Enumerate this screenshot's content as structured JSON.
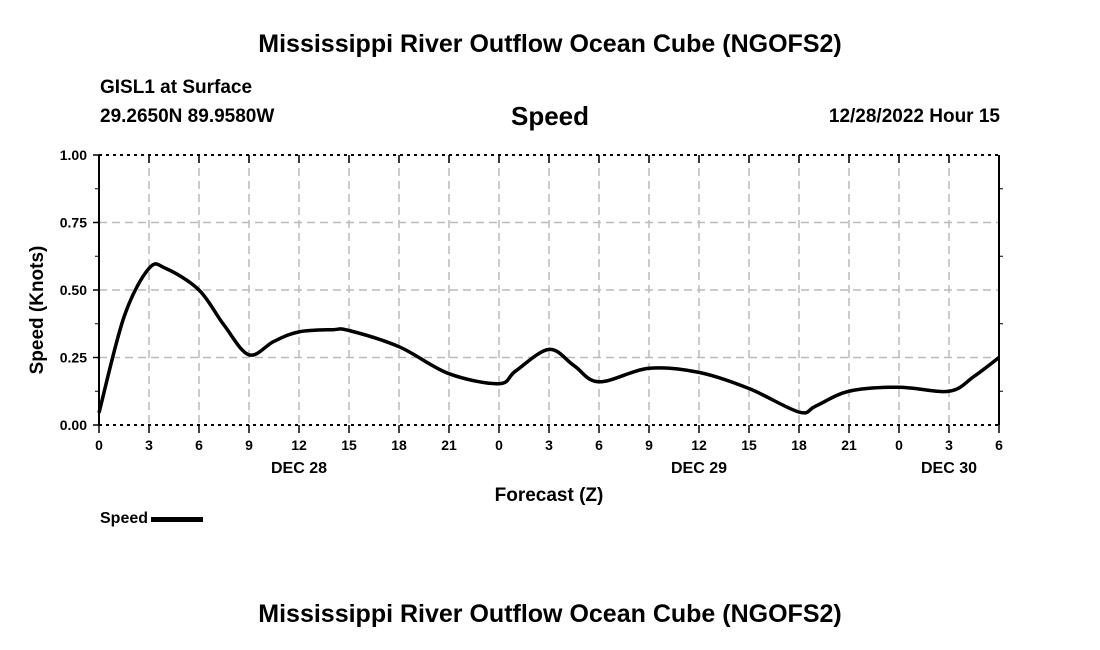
{
  "header": {
    "title": "Mississippi River Outflow Ocean Cube (NGOFS2)",
    "station": "GISL1 at Surface",
    "coords": "29.2650N  89.9580W",
    "datetime": "12/28/2022 Hour 15",
    "footer_title": "Mississippi River Outflow Ocean Cube (NGOFS2)"
  },
  "chart_data": {
    "type": "line",
    "title": "Speed",
    "xlabel": "Forecast (Z)",
    "ylabel": "Speed (Knots)",
    "ylim": [
      0,
      1
    ],
    "xlim": [
      0,
      54
    ],
    "grid": true,
    "yticks": [
      "0.00",
      "0.25",
      "0.50",
      "0.75",
      "1.00"
    ],
    "xticks": [
      "0",
      "3",
      "6",
      "9",
      "12",
      "15",
      "18",
      "21",
      "0",
      "3",
      "6",
      "9",
      "12",
      "15",
      "18",
      "21",
      "0",
      "3",
      "6"
    ],
    "date_labels": [
      {
        "hour": 12,
        "label": "DEC 28"
      },
      {
        "hour": 36,
        "label": "DEC 29"
      },
      {
        "hour": 51,
        "label": "DEC 30"
      }
    ],
    "legend": {
      "label": "Speed",
      "position": "bottom-left"
    },
    "series": [
      {
        "name": "Speed",
        "color": "#000000",
        "x": [
          0,
          1.5,
          3,
          4,
          6,
          7.5,
          9,
          10.5,
          12,
          14,
          15,
          18,
          21,
          24,
          25,
          27,
          28.5,
          30,
          33,
          36,
          39,
          42,
          43,
          45,
          48,
          51,
          52.5,
          54
        ],
        "values": [
          0.045,
          0.4,
          0.58,
          0.58,
          0.5,
          0.37,
          0.26,
          0.31,
          0.345,
          0.353,
          0.35,
          0.29,
          0.19,
          0.153,
          0.2,
          0.28,
          0.22,
          0.16,
          0.21,
          0.195,
          0.135,
          0.048,
          0.07,
          0.125,
          0.14,
          0.125,
          0.18,
          0.25
        ]
      }
    ]
  }
}
